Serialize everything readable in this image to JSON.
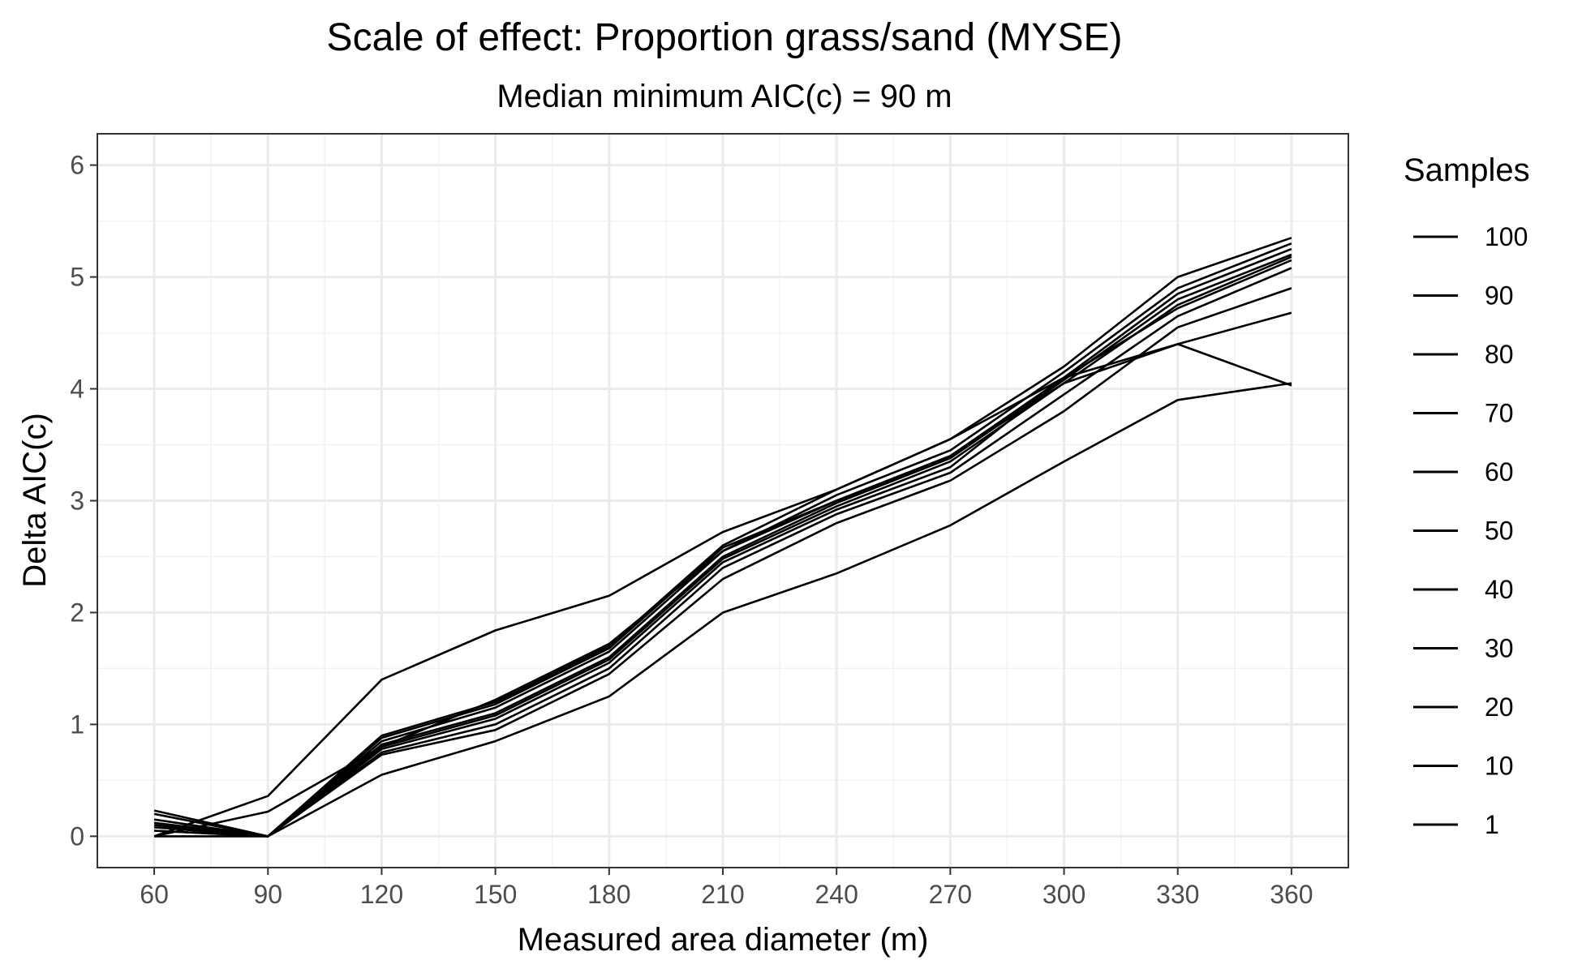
{
  "chart_data": {
    "type": "line",
    "title": "Scale of effect: Proportion grass/sand (MYSE)",
    "subtitle": "Median minimum AIC(c) = 90 m",
    "xlabel": "Measured area diameter (m)",
    "ylabel": "Delta AIC(c)",
    "x": [
      60,
      90,
      120,
      150,
      180,
      210,
      240,
      270,
      300,
      330,
      360
    ],
    "xlim": [
      45,
      375
    ],
    "ylim": [
      -0.28,
      6.28
    ],
    "x_ticks": [
      "60",
      "90",
      "120",
      "150",
      "180",
      "210",
      "240",
      "270",
      "300",
      "330",
      "360"
    ],
    "y_ticks": [
      "0",
      "1",
      "2",
      "3",
      "4",
      "5",
      "6"
    ],
    "grid": true,
    "legend_title": "Samples",
    "legend_position": "right",
    "line_color": "#000000",
    "series": [
      {
        "name": "100",
        "values": [
          0.1,
          0.0,
          0.9,
          1.2,
          1.7,
          2.6,
          3.1,
          3.55,
          4.2,
          5.0,
          5.35
        ]
      },
      {
        "name": "90",
        "values": [
          0.05,
          0.0,
          0.85,
          1.15,
          1.65,
          2.55,
          3.05,
          3.45,
          4.15,
          4.9,
          5.3
        ]
      },
      {
        "name": "80",
        "values": [
          0.12,
          0.0,
          0.88,
          1.18,
          1.68,
          2.58,
          3.0,
          3.4,
          4.1,
          4.85,
          5.25
        ]
      },
      {
        "name": "70",
        "values": [
          0.08,
          0.0,
          0.82,
          1.1,
          1.6,
          2.5,
          2.98,
          3.38,
          4.08,
          4.8,
          5.2
        ]
      },
      {
        "name": "60",
        "values": [
          0.15,
          0.0,
          0.8,
          1.08,
          1.58,
          2.48,
          2.95,
          3.35,
          4.05,
          4.75,
          5.18
        ]
      },
      {
        "name": "50",
        "values": [
          0.0,
          0.0,
          0.78,
          1.05,
          1.55,
          2.45,
          2.92,
          3.3,
          4.1,
          4.72,
          5.15
        ]
      },
      {
        "name": "40",
        "values": [
          0.2,
          0.0,
          0.75,
          1.0,
          1.5,
          2.4,
          2.88,
          3.25,
          3.95,
          4.65,
          5.08
        ]
      },
      {
        "name": "30",
        "values": [
          0.05,
          0.0,
          0.73,
          0.95,
          1.45,
          2.3,
          2.8,
          3.18,
          3.8,
          4.55,
          4.9
        ]
      },
      {
        "name": "20",
        "values": [
          0.23,
          0.0,
          0.55,
          0.85,
          1.25,
          2.0,
          2.35,
          2.78,
          3.35,
          3.9,
          4.05
        ]
      },
      {
        "name": "10",
        "values": [
          0.0,
          0.22,
          0.8,
          1.22,
          1.72,
          2.55,
          3.0,
          3.4,
          4.05,
          4.4,
          4.68
        ]
      },
      {
        "name": "1",
        "values": [
          0.0,
          0.36,
          1.4,
          1.84,
          2.15,
          2.72,
          3.1,
          3.55,
          4.1,
          4.4,
          4.03
        ]
      }
    ]
  }
}
